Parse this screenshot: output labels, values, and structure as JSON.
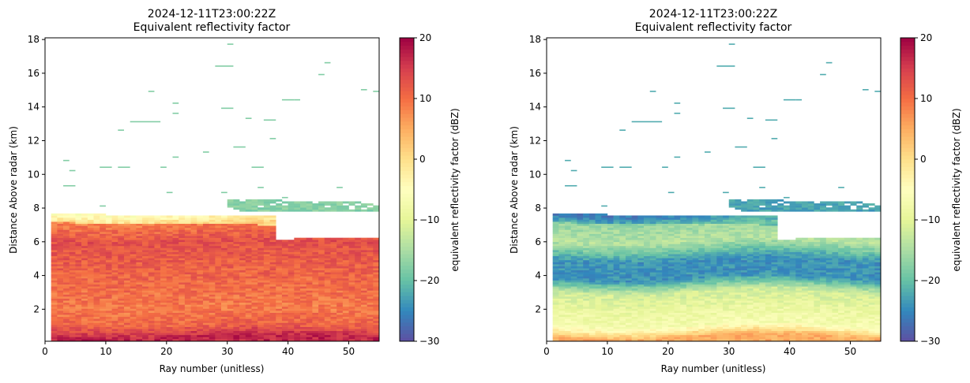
{
  "chart_data": [
    {
      "type": "heatmap",
      "title_line1": "2024-12-11T23:00:22Z",
      "title_line2": "Equivalent reflectivity factor",
      "xlabel": "Ray number (unitless)",
      "ylabel": "Distance Above radar  (km)",
      "xlim": [
        0,
        55
      ],
      "ylim": [
        0.1,
        18.1
      ],
      "xticks": [
        "0",
        "10",
        "20",
        "30",
        "40",
        "50"
      ],
      "yticks": [
        "2",
        "4",
        "6",
        "8",
        "10",
        "12",
        "14",
        "16",
        "18"
      ],
      "colorbar": {
        "label": "equivalent reflectivity factor (dBZ)",
        "range": [
          -30,
          20
        ],
        "ticks": [
          "−30",
          "−20",
          "−10",
          "0",
          "10",
          "20"
        ],
        "colormap": "Spectral_r"
      },
      "mean_profile_dbz": [
        {
          "height_km": 0.3,
          "dbz": 17
        },
        {
          "height_km": 1.0,
          "dbz": 11
        },
        {
          "height_km": 2.0,
          "dbz": 9
        },
        {
          "height_km": 3.0,
          "dbz": 10
        },
        {
          "height_km": 4.0,
          "dbz": 11
        },
        {
          "height_km": 5.0,
          "dbz": 12
        },
        {
          "height_km": 6.0,
          "dbz": 13
        },
        {
          "height_km": 7.0,
          "dbz": 9
        },
        {
          "height_km": 7.6,
          "dbz": 3
        }
      ]
    },
    {
      "type": "heatmap",
      "title_line1": "2024-12-11T23:00:22Z",
      "title_line2": "Equivalent reflectivity factor",
      "xlabel": "Ray number (unitless)",
      "ylabel": "Distance Above radar  (km)",
      "xlim": [
        0,
        55
      ],
      "ylim": [
        0.1,
        18.1
      ],
      "xticks": [
        "0",
        "10",
        "20",
        "30",
        "40",
        "50"
      ],
      "yticks": [
        "2",
        "4",
        "6",
        "8",
        "10",
        "12",
        "14",
        "16",
        "18"
      ],
      "colorbar": {
        "label": "equivalent reflectivity factor (dBZ)",
        "range": [
          -30,
          20
        ],
        "ticks": [
          "−30",
          "−20",
          "−10",
          "0",
          "10",
          "20"
        ],
        "colormap": "Spectral_r"
      },
      "mean_profile_dbz": [
        {
          "height_km": 0.3,
          "dbz": 5
        },
        {
          "height_km": 1.0,
          "dbz": -7
        },
        {
          "height_km": 2.0,
          "dbz": -9
        },
        {
          "height_km": 3.0,
          "dbz": -12
        },
        {
          "height_km": 3.8,
          "dbz": -24
        },
        {
          "height_km": 4.9,
          "dbz": -24
        },
        {
          "height_km": 6.0,
          "dbz": -14
        },
        {
          "height_km": 7.0,
          "dbz": -16
        },
        {
          "height_km": 7.6,
          "dbz": -22
        }
      ]
    }
  ]
}
